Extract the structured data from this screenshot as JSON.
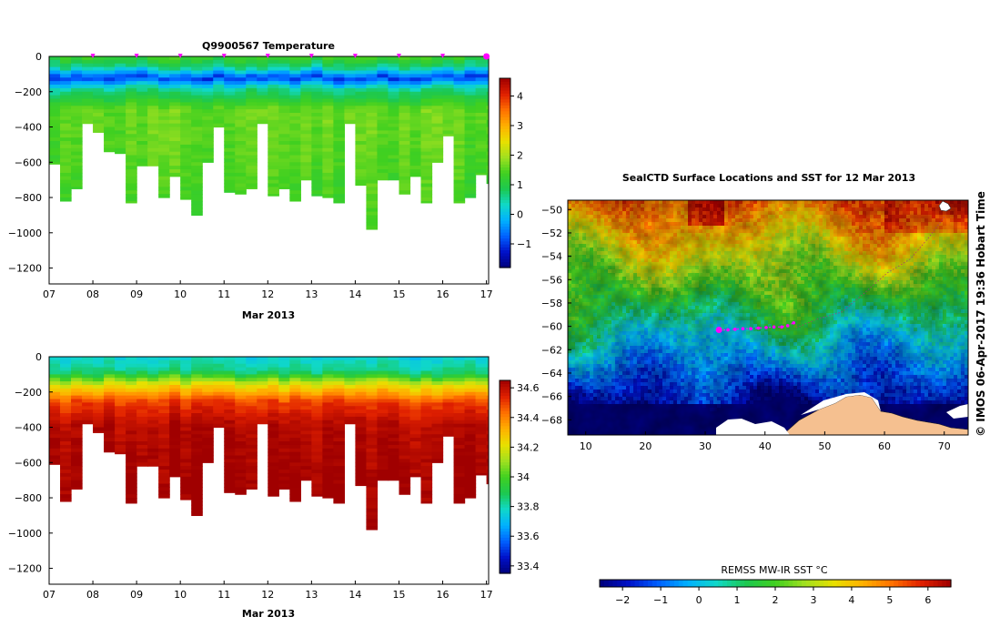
{
  "colors": {
    "jet": [
      "#00007a",
      "#0011c8",
      "#0060ff",
      "#00b0ff",
      "#10d8c8",
      "#1cc850",
      "#40d020",
      "#a0e020",
      "#e8e000",
      "#ffb000",
      "#ff7000",
      "#e02000",
      "#a00000"
    ],
    "land": "#f5c090",
    "ice": "#ffffff",
    "track": "#ff00ff"
  },
  "chart_data": [
    {
      "id": "temperature-section",
      "type": "heatmap",
      "title": "Q9900567  Temperature",
      "xlabel": "Mar 2013",
      "x_ticks": [
        "07",
        "08",
        "09",
        "10",
        "11",
        "12",
        "13",
        "14",
        "15",
        "16",
        "17"
      ],
      "y_ticks": [
        0,
        -200,
        -400,
        -600,
        -800,
        -1000,
        -1200
      ],
      "xlim": [
        7.0,
        17.05
      ],
      "ylim": [
        -1290,
        0
      ],
      "profile_days": [
        7.0,
        7.25,
        7.5,
        7.75,
        8.0,
        8.25,
        8.5,
        8.75,
        9.0,
        9.25,
        9.5,
        9.75,
        10.0,
        10.25,
        10.5,
        10.75,
        11.0,
        11.25,
        11.5,
        11.75,
        12.0,
        12.25,
        12.5,
        12.75,
        13.0,
        13.25,
        13.5,
        13.75,
        14.0,
        14.25,
        14.5,
        14.75,
        15.0,
        15.25,
        15.5,
        15.75,
        16.0,
        16.25,
        16.5,
        16.75,
        17.0
      ],
      "profile_max_depth": [
        610,
        820,
        750,
        380,
        430,
        540,
        550,
        830,
        620,
        620,
        800,
        680,
        810,
        900,
        600,
        400,
        770,
        780,
        750,
        380,
        790,
        750,
        820,
        700,
        790,
        800,
        830,
        380,
        730,
        980,
        700,
        700,
        780,
        680,
        830,
        600,
        450,
        830,
        800,
        670,
        720
      ],
      "surface_marks": [
        8.0,
        9.0,
        10.0,
        11.0,
        12.0,
        13.0,
        14.0,
        15.0,
        16.0,
        17.0
      ],
      "colorbar": {
        "min": -1.8,
        "max": 4.6,
        "ticks": [
          -1,
          0,
          1,
          2,
          3,
          4
        ]
      },
      "profile": [
        {
          "depth": 0,
          "value": 1.3
        },
        {
          "depth": 60,
          "value": 0.6
        },
        {
          "depth": 120,
          "value": -1.0
        },
        {
          "depth": 180,
          "value": 0.5
        },
        {
          "depth": 300,
          "value": 1.6
        },
        {
          "depth": 600,
          "value": 1.5
        },
        {
          "depth": 1000,
          "value": 1.2
        }
      ]
    },
    {
      "id": "salinity-section",
      "type": "heatmap",
      "title": "",
      "xlabel": "Mar 2013",
      "x_ticks": [
        "07",
        "08",
        "09",
        "10",
        "11",
        "12",
        "13",
        "14",
        "15",
        "16",
        "17"
      ],
      "y_ticks": [
        0,
        -200,
        -400,
        -600,
        -800,
        -1000,
        -1200
      ],
      "xlim": [
        7.0,
        17.05
      ],
      "ylim": [
        -1290,
        0
      ],
      "colorbar": {
        "min": 33.35,
        "max": 34.65,
        "ticks": [
          33.4,
          33.6,
          33.8,
          34,
          34.2,
          34.4,
          34.6
        ]
      },
      "profile": [
        {
          "depth": 0,
          "value": 33.75
        },
        {
          "depth": 90,
          "value": 33.85
        },
        {
          "depth": 160,
          "value": 34.2
        },
        {
          "depth": 260,
          "value": 34.5
        },
        {
          "depth": 400,
          "value": 34.62
        },
        {
          "depth": 1000,
          "value": 34.68
        }
      ]
    },
    {
      "id": "sst-map",
      "type": "heatmap",
      "title": "SealCTD Surface Locations and SST for 12 Mar 2013",
      "xlabel": "",
      "ylabel": "",
      "x_ticks": [
        10,
        20,
        30,
        40,
        50,
        60,
        70
      ],
      "y_ticks": [
        -50,
        -52,
        -54,
        -56,
        -58,
        -60,
        -62,
        -64,
        -66,
        -68
      ],
      "xlim": [
        7,
        74
      ],
      "ylim": [
        -69.3,
        -49.2
      ],
      "colorbar": {
        "label": "REMSS MW-IR SST °C",
        "min": -2.6,
        "max": 6.6,
        "ticks": [
          -2,
          -1,
          0,
          1,
          2,
          3,
          4,
          5,
          6
        ]
      },
      "track_lon": [
        32.3,
        33.8,
        35.0,
        36.3,
        37.6,
        38.9,
        40.2,
        41.5,
        42.8,
        43.8,
        44.8
      ],
      "track_lat": [
        -60.3,
        -60.3,
        -60.25,
        -60.2,
        -60.2,
        -60.15,
        -60.1,
        -60.05,
        -60.05,
        -59.95,
        -59.7
      ]
    }
  ],
  "stamp": "© IMOS 06-Apr-2017 19:36 Hobart Time"
}
